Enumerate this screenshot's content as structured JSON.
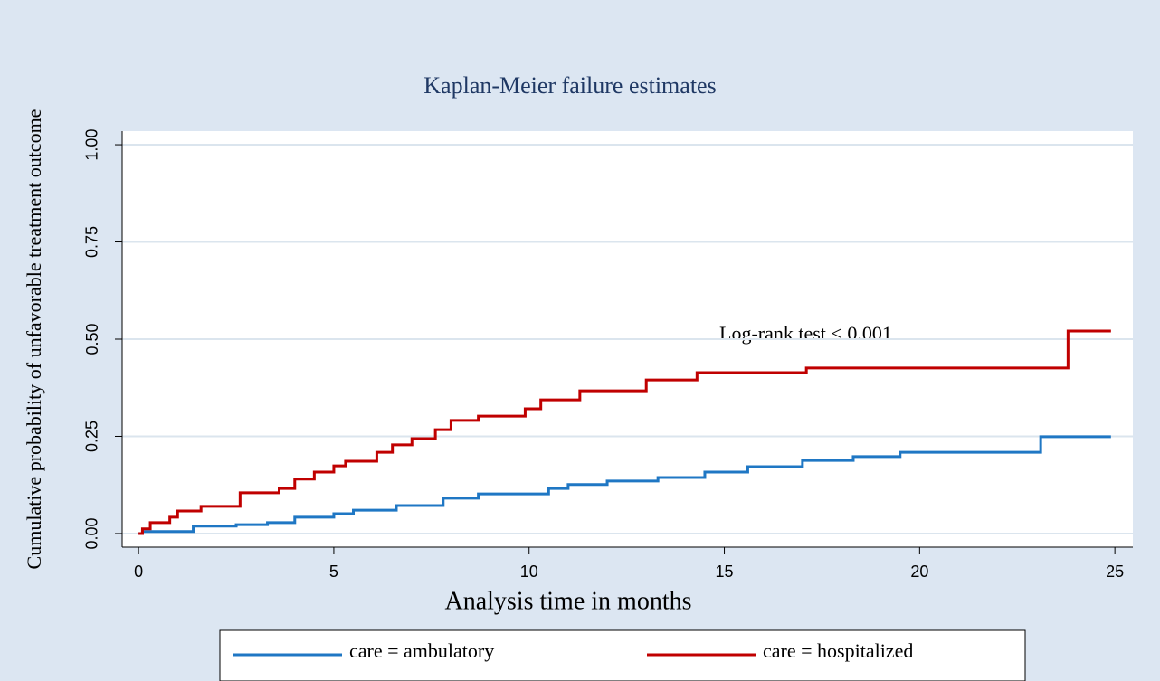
{
  "chart_data": {
    "type": "line",
    "step": true,
    "title": "Kaplan-Meier failure estimates",
    "x_label": "Analysis time in months",
    "y_label": "Cumulative probability of unfavorable treatment outcome",
    "annotation": "Log-rank test < 0.001",
    "xlim": [
      -0.42,
      25.46
    ],
    "ylim": [
      -0.035,
      1.035
    ],
    "xticks": [
      0,
      5,
      10,
      15,
      20,
      25
    ],
    "yticks": [
      {
        "value": 0,
        "label": "0.00"
      },
      {
        "value": 0.25,
        "label": "0.25"
      },
      {
        "value": 0.5,
        "label": "0.50"
      },
      {
        "value": 0.75,
        "label": "0.75"
      },
      {
        "value": 1,
        "label": "1.00"
      }
    ],
    "grid": true,
    "series": [
      {
        "name": "care = ambulatory",
        "color": "#1f77c4",
        "x": [
          0,
          0.1,
          1.4,
          2.5,
          3.3,
          4.0,
          5.0,
          5.5,
          6.6,
          7.8,
          8.7,
          10.5,
          11.0,
          12.0,
          13.3,
          14.5,
          15.6,
          17.0,
          18.3,
          19.5,
          23.1,
          24.9
        ],
        "values": [
          0,
          0.005,
          0.019,
          0.023,
          0.028,
          0.042,
          0.051,
          0.06,
          0.072,
          0.091,
          0.102,
          0.116,
          0.126,
          0.135,
          0.144,
          0.158,
          0.172,
          0.188,
          0.198,
          0.209,
          0.249,
          0.249
        ]
      },
      {
        "name": "care = hospitalized",
        "color": "#c00000",
        "x": [
          0,
          0.1,
          0.3,
          0.8,
          1.0,
          1.6,
          2.6,
          3.6,
          4.0,
          4.5,
          5.0,
          5.3,
          6.1,
          6.5,
          7.0,
          7.6,
          8.0,
          8.7,
          9.9,
          10.3,
          11.3,
          13.0,
          14.3,
          17.1,
          23.8,
          24.9
        ],
        "values": [
          0,
          0.012,
          0.028,
          0.042,
          0.058,
          0.07,
          0.105,
          0.116,
          0.14,
          0.158,
          0.174,
          0.186,
          0.209,
          0.228,
          0.244,
          0.267,
          0.291,
          0.302,
          0.321,
          0.344,
          0.367,
          0.395,
          0.414,
          0.426,
          0.521,
          0.521
        ]
      }
    ]
  }
}
